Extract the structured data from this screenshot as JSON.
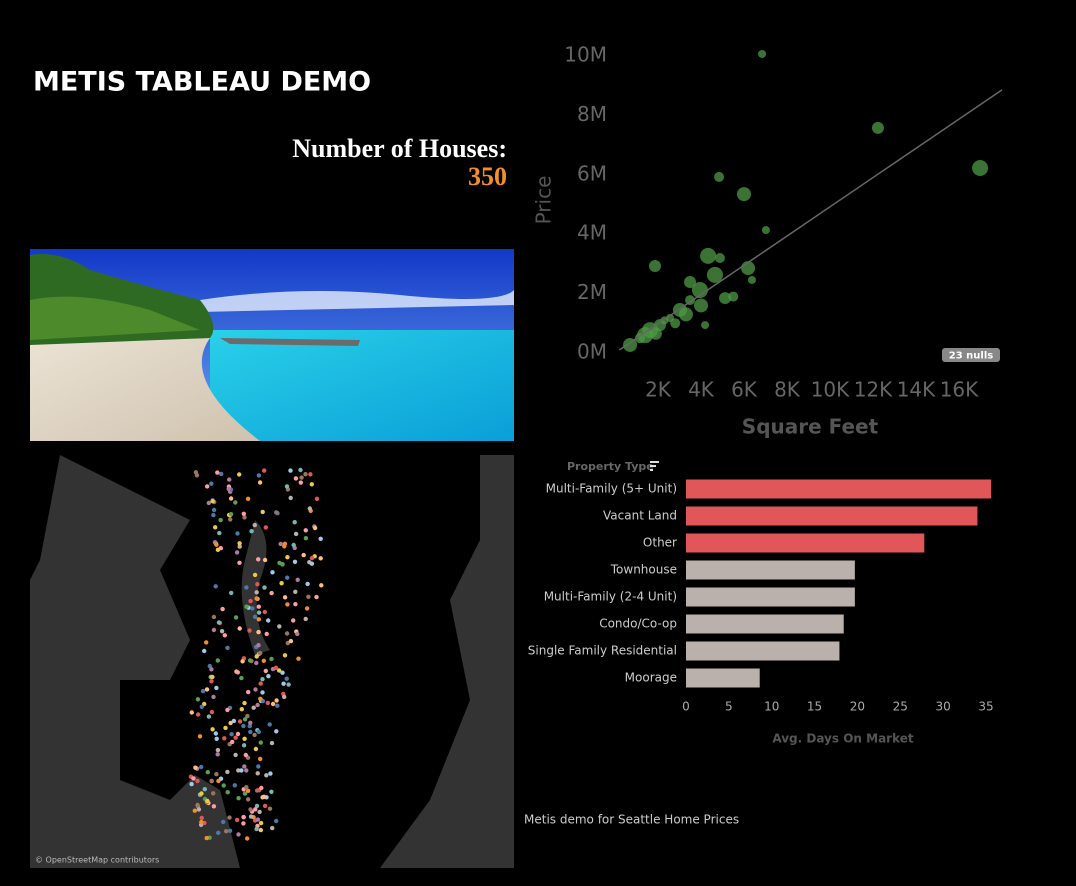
{
  "header": {
    "title": "METIS TABLEAU DEMO"
  },
  "kpi": {
    "label": "Number of Houses:",
    "value": "350"
  },
  "map": {
    "attribution": "© OpenStreetMap contributors"
  },
  "footer": {
    "text": "Metis demo for Seattle Home Prices"
  },
  "chart_data": [
    {
      "type": "scatter",
      "x_label": "Square Feet",
      "y_label": "Price",
      "annotation": "23 nulls",
      "color": "#4e9a45",
      "x": [
        6840,
        12230,
        16980,
        4840,
        6000,
        7020,
        1860,
        4330,
        4880,
        6190,
        6370,
        5120,
        3950,
        3490,
        3020,
        2560,
        2090,
        1630,
        1160,
        700,
        4190,
        3490,
        4650,
        2800,
        3300,
        2300,
        1900,
        1400,
        5500,
        4000
      ],
      "y": [
        10070000,
        7580000,
        6230000,
        5930000,
        5350000,
        4140000,
        2930000,
        3270000,
        3200000,
        2860000,
        2460000,
        1850000,
        2120000,
        1780000,
        1450000,
        1180000,
        940000,
        770000,
        500000,
        270000,
        940000,
        2390000,
        2630000,
        1000000,
        1300000,
        1100000,
        650000,
        600000,
        1900000,
        1600000
      ],
      "trend_line": {
        "x": [
          200,
          18000
        ],
        "y": [
          100000,
          8860000
        ]
      },
      "xlim": [
        0,
        18000
      ],
      "ylim": [
        0,
        10500000
      ],
      "xticks": [
        {
          "value": 2000,
          "label": "2K"
        },
        {
          "value": 4000,
          "label": "4K"
        },
        {
          "value": 6000,
          "label": "6K"
        },
        {
          "value": 8000,
          "label": "8K"
        },
        {
          "value": 10000,
          "label": "10K"
        },
        {
          "value": 12000,
          "label": "12K"
        },
        {
          "value": 14000,
          "label": "14K"
        },
        {
          "value": 16000,
          "label": "16K"
        }
      ],
      "yticks": [
        {
          "value": 0,
          "label": "0M"
        },
        {
          "value": 2000000,
          "label": "2M"
        },
        {
          "value": 4000000,
          "label": "4M"
        },
        {
          "value": 6000000,
          "label": "6M"
        },
        {
          "value": 8000000,
          "label": "8M"
        },
        {
          "value": 10000000,
          "label": "10M"
        }
      ]
    },
    {
      "type": "bar",
      "orientation": "horizontal",
      "category_label": "Property Type",
      "x_label": "Avg. Days On Market",
      "categories": [
        "Multi-Family (5+ Unit)",
        "Vacant Land",
        "Other",
        "Townhouse",
        "Multi-Family (2-4 Unit)",
        "Condo/Co-op",
        "Single Family Residential",
        "Moorage"
      ],
      "values": [
        35.6,
        34.0,
        27.8,
        19.7,
        19.7,
        18.4,
        17.9,
        8.6
      ],
      "colors": [
        "#e15759",
        "#e15759",
        "#e15759",
        "#bab0ac",
        "#bab0ac",
        "#bab0ac",
        "#bab0ac",
        "#bab0ac"
      ],
      "xlim": [
        0,
        35
      ],
      "xticks": [
        0,
        5,
        10,
        15,
        20,
        25,
        30,
        35
      ]
    }
  ]
}
